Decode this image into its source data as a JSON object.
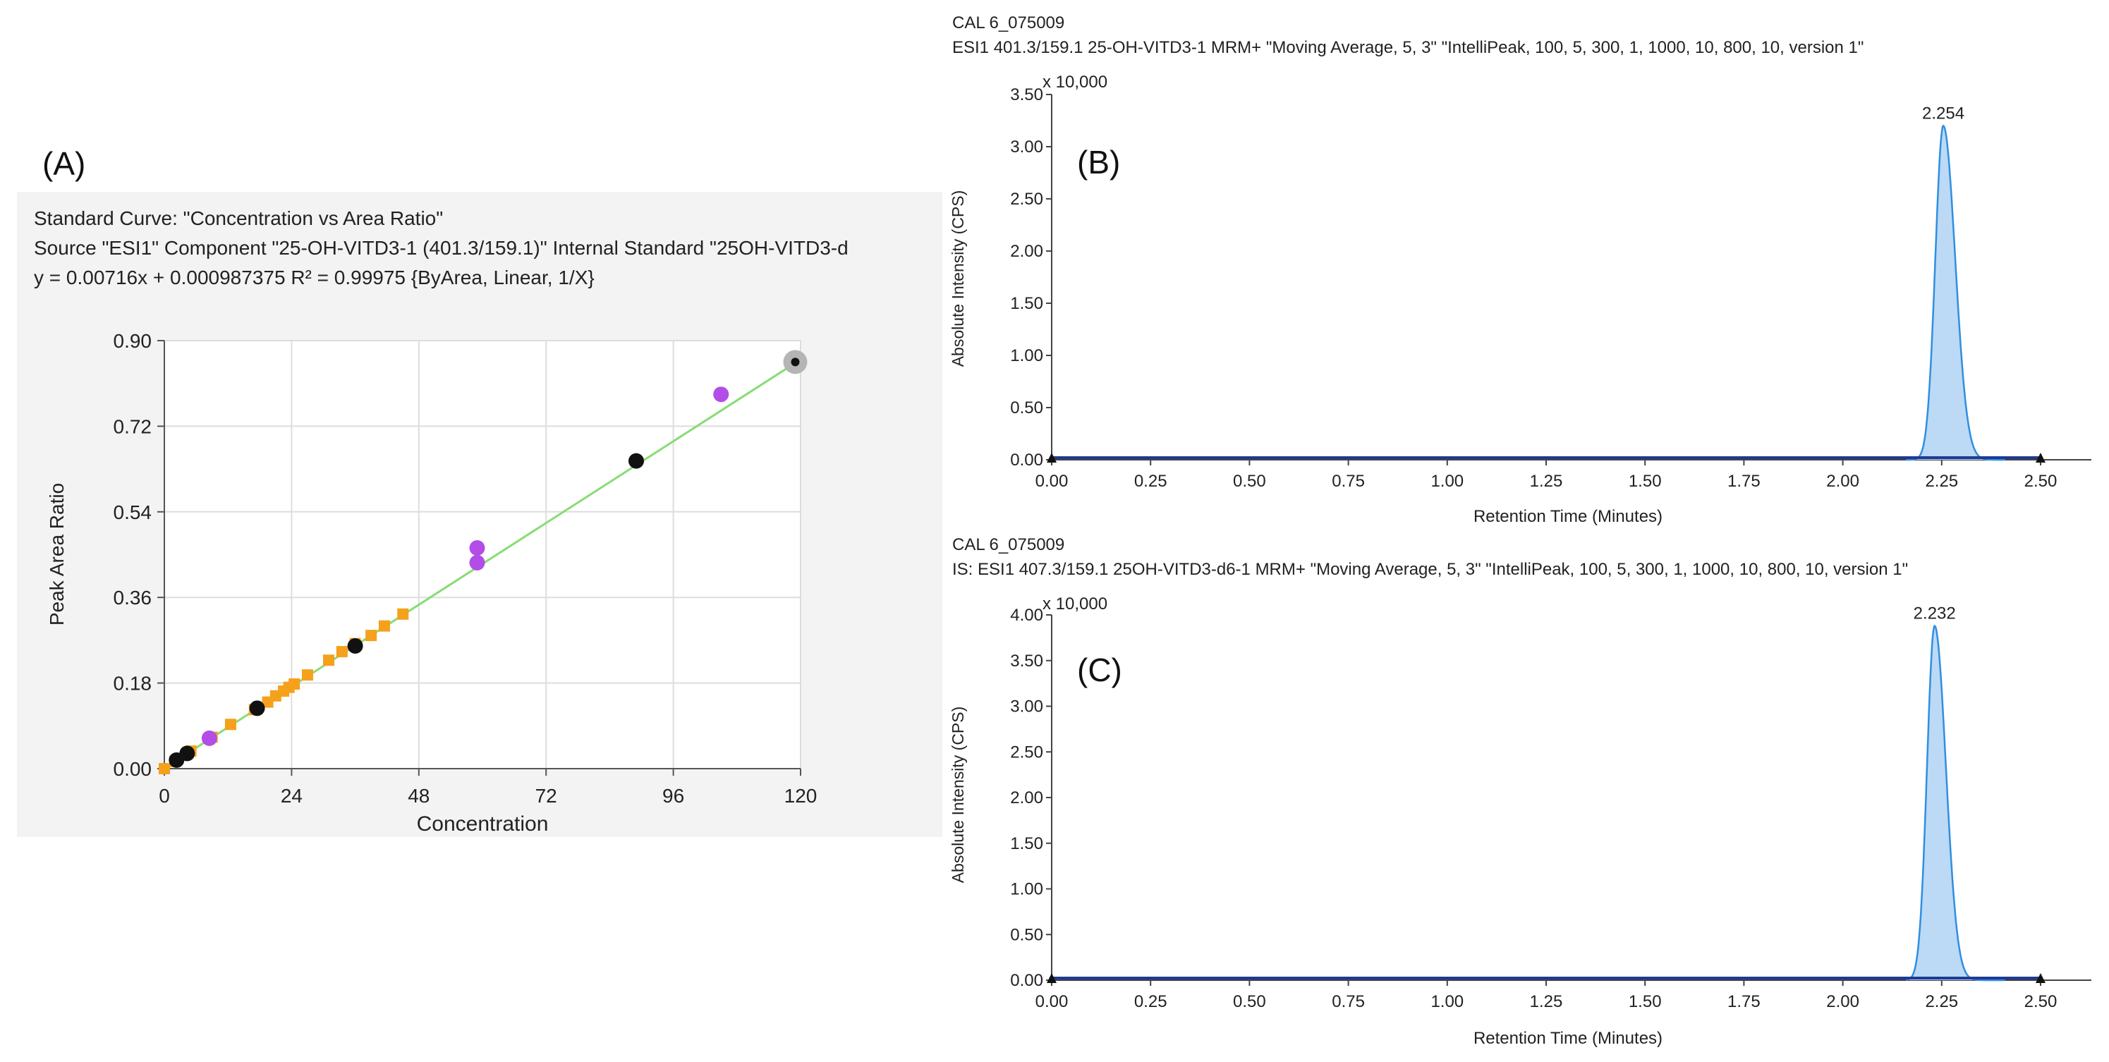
{
  "panels": {
    "a": {
      "label": "(A)",
      "header_lines": [
        "Standard Curve: \"Concentration vs Area Ratio\"",
        "Source \"ESI1\" Component \"25-OH-VITD3-1 (401.3/159.1)\"  Internal Standard \"25OH-VITD3-d",
        "y = 0.00716x + 0.000987375    R² = 0.99975  {ByArea, Linear, 1/X}"
      ]
    },
    "b": {
      "label": "(B)",
      "header_lines": [
        "CAL 6_075009",
        "ESI1 401.3/159.1 25-OH-VITD3-1 MRM+ \"Moving Average, 5, 3\" \"IntelliPeak, 100, 5, 300, 1, 1000, 10, 800, 10, version 1\""
      ]
    },
    "c": {
      "label": "(C)",
      "header_lines": [
        "CAL 6_075009",
        "IS: ESI1 407.3/159.1 25OH-VITD3-d6-1 MRM+ \"Moving Average, 5, 3\" \"IntelliPeak, 100, 5, 300, 1, 1000, 10, 800, 10, version 1\""
      ]
    }
  },
  "colors": {
    "fit_line": "#86dd74",
    "orange_points": "#f5a11b",
    "black_points": "#111111",
    "purple_points": "#b24de8",
    "grid": "#dddddd",
    "peak_fill": "#bcd9f5",
    "peak_line": "#2f8fe0",
    "baseline": "#1f3a93"
  },
  "chart_data": [
    {
      "id": "A",
      "type": "scatter",
      "title": "Standard Curve: \"Concentration vs Area Ratio\"",
      "xlabel": "Concentration",
      "ylabel": "Peak Area Ratio",
      "xlim": [
        0,
        120
      ],
      "ylim": [
        0,
        0.9
      ],
      "xticks": [
        "0",
        "24",
        "48",
        "72",
        "96",
        "120"
      ],
      "yticks": [
        "0.00",
        "0.18",
        "0.36",
        "0.54",
        "0.72",
        "0.90"
      ],
      "grid": true,
      "fit": {
        "slope": 0.00716,
        "intercept": 0.000987375,
        "r2": 0.99975
      },
      "series": [
        {
          "color": "orange",
          "points": [
            [
              0,
              0.0
            ],
            [
              2,
              0.015
            ],
            [
              5,
              0.037
            ],
            [
              9,
              0.066
            ],
            [
              12.5,
              0.093
            ],
            [
              17,
              0.124
            ],
            [
              19.5,
              0.14
            ],
            [
              21,
              0.153
            ],
            [
              22.5,
              0.163
            ],
            [
              23.5,
              0.171
            ],
            [
              24.5,
              0.178
            ],
            [
              27,
              0.197
            ],
            [
              31,
              0.228
            ],
            [
              33.5,
              0.246
            ],
            [
              36,
              0.263
            ],
            [
              39,
              0.28
            ],
            [
              41.5,
              0.3
            ],
            [
              45,
              0.325
            ]
          ]
        },
        {
          "color": "black",
          "points": [
            [
              2.3,
              0.018
            ],
            [
              4.3,
              0.032
            ],
            [
              17.5,
              0.127
            ],
            [
              36,
              0.258
            ],
            [
              89,
              0.647
            ]
          ]
        },
        {
          "color": "purple",
          "points": [
            [
              8.5,
              0.064
            ],
            [
              59,
              0.464
            ],
            [
              59,
              0.433
            ],
            [
              105,
              0.787
            ]
          ]
        },
        {
          "color": "gray",
          "points": [
            [
              119,
              0.855
            ]
          ]
        }
      ]
    },
    {
      "id": "B",
      "type": "area",
      "xlabel": "Retention Time (Minutes)",
      "ylabel": "Absolute Intensity (CPS)",
      "ylabel_scale": "x 10,000",
      "xlim": [
        0,
        2.5
      ],
      "ylim": [
        0,
        3.5
      ],
      "xticks": [
        "0.00",
        "0.25",
        "0.50",
        "0.75",
        "1.00",
        "1.25",
        "1.50",
        "1.75",
        "2.00",
        "2.25",
        "2.50"
      ],
      "yticks": [
        "0.00",
        "0.50",
        "1.00",
        "1.50",
        "2.00",
        "2.50",
        "3.00",
        "3.50"
      ],
      "peak_label": "2.254",
      "peak_time": 2.254,
      "peak_height": 3.2
    },
    {
      "id": "C",
      "type": "area",
      "xlabel": "Retention Time (Minutes)",
      "ylabel": "Absolute Intensity (CPS)",
      "ylabel_scale": "x 10,000",
      "xlim": [
        0,
        2.5
      ],
      "ylim": [
        0,
        4.0
      ],
      "xticks": [
        "0.00",
        "0.25",
        "0.50",
        "0.75",
        "1.00",
        "1.25",
        "1.50",
        "1.75",
        "2.00",
        "2.25",
        "2.50"
      ],
      "yticks": [
        "0.00",
        "0.50",
        "1.00",
        "1.50",
        "2.00",
        "2.50",
        "3.00",
        "3.50",
        "4.00"
      ],
      "peak_label": "2.232",
      "peak_time": 2.232,
      "peak_height": 3.88
    }
  ]
}
